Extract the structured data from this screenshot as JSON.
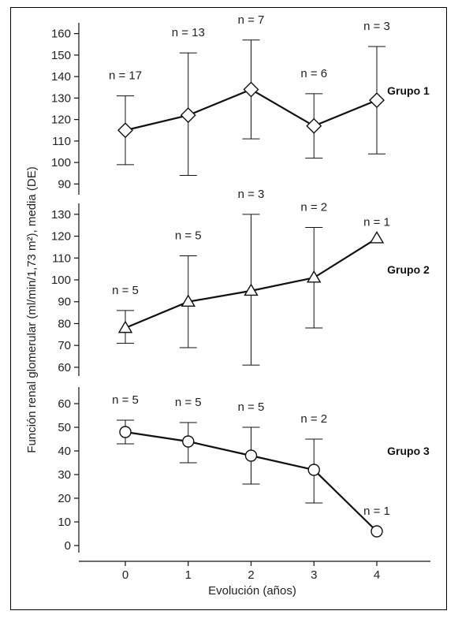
{
  "chart_data": {
    "type": "line",
    "xlabel": "Evolución (años)",
    "ylabel": "Función renal glomerular (ml/min/1,73 m²), media (DE)",
    "x_ticks": [
      0,
      1,
      2,
      3,
      4
    ],
    "colors": {
      "line": "#111111",
      "marker_fill": "#ffffff",
      "text": "#222222"
    },
    "grid": false,
    "panels": [
      {
        "series": [
          {
            "name": "Grupo 1",
            "marker": "diamond",
            "x": [
              0,
              1,
              2,
              3,
              4
            ],
            "mean": [
              115,
              122,
              134,
              117,
              129
            ],
            "sd_low": [
              99,
              94,
              111,
              102,
              104
            ],
            "sd_high": [
              131,
              151,
              157,
              132,
              154
            ],
            "n_labels": [
              "n = 17",
              "n = 13",
              "n = 7",
              "n = 6",
              "n = 3"
            ]
          }
        ],
        "ylim": [
          85,
          165
        ],
        "y_ticks": [
          90,
          100,
          110,
          120,
          130,
          140,
          150,
          160
        ]
      },
      {
        "series": [
          {
            "name": "Grupo 2",
            "marker": "triangle",
            "x": [
              0,
              1,
              2,
              3,
              4
            ],
            "mean": [
              78,
              90,
              95,
              101,
              119
            ],
            "sd_low": [
              71,
              69,
              61,
              78,
              null
            ],
            "sd_high": [
              86,
              111,
              130,
              124,
              null
            ],
            "n_labels": [
              "n = 5",
              "n = 5",
              "n = 3",
              "n = 2",
              "n = 1"
            ]
          }
        ],
        "ylim": [
          56,
          135
        ],
        "y_ticks": [
          60,
          70,
          80,
          90,
          100,
          110,
          120,
          130
        ]
      },
      {
        "series": [
          {
            "name": "Grupo 3",
            "marker": "circle",
            "x": [
              0,
              1,
              2,
              3,
              4
            ],
            "mean": [
              48,
              44,
              38,
              32,
              6
            ],
            "sd_low": [
              43,
              35,
              26,
              18,
              null
            ],
            "sd_high": [
              53,
              52,
              50,
              45,
              null
            ],
            "n_labels": [
              "n = 5",
              "n = 5",
              "n = 5",
              "n = 2",
              "n = 1"
            ]
          }
        ],
        "ylim": [
          -3,
          67
        ],
        "y_ticks": [
          0,
          10,
          20,
          30,
          40,
          50,
          60
        ]
      }
    ]
  }
}
